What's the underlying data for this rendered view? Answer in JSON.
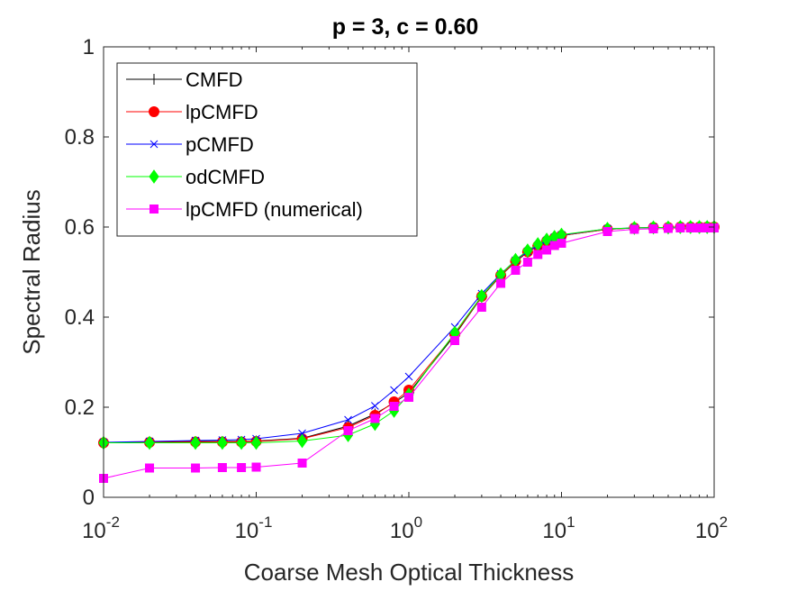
{
  "chart_data": {
    "type": "line",
    "title": "p = 3, c = 0.60",
    "xlabel": "Coarse Mesh Optical Thickness",
    "ylabel": "Spectral Radius",
    "xscale": "log",
    "xlim": [
      0.01,
      100
    ],
    "ylim": [
      0,
      1
    ],
    "x_ticks": [
      {
        "base": "10",
        "exp": "-2"
      },
      {
        "base": "10",
        "exp": "-1"
      },
      {
        "base": "10",
        "exp": "0"
      },
      {
        "base": "10",
        "exp": "1"
      },
      {
        "base": "10",
        "exp": "2"
      }
    ],
    "y_ticks": [
      "0",
      "0.2",
      "0.4",
      "0.6",
      "0.8",
      "1"
    ],
    "legend_position": "top-left",
    "x": [
      0.01,
      0.02,
      0.04,
      0.06,
      0.08,
      0.1,
      0.2,
      0.4,
      0.6,
      0.8,
      1,
      2,
      3,
      4,
      5,
      6,
      7,
      8,
      9,
      10,
      20,
      30,
      40,
      50,
      60,
      70,
      80,
      90,
      100
    ],
    "series": [
      {
        "name": "CMFD",
        "color": "#000000",
        "marker": "plus",
        "values": [
          0.121,
          0.123,
          0.124,
          0.124,
          0.124,
          0.125,
          0.131,
          0.158,
          0.185,
          0.21,
          0.232,
          0.36,
          0.445,
          0.492,
          0.523,
          0.544,
          0.558,
          0.569,
          0.576,
          0.581,
          0.595,
          0.598,
          0.599,
          0.599,
          0.6,
          0.6,
          0.6,
          0.6,
          0.6
        ]
      },
      {
        "name": "lpCMFD",
        "color": "#ff0000",
        "marker": "circle",
        "values": [
          0.121,
          0.122,
          0.123,
          0.123,
          0.123,
          0.124,
          0.13,
          0.155,
          0.182,
          0.212,
          0.238,
          0.362,
          0.446,
          0.493,
          0.524,
          0.545,
          0.558,
          0.569,
          0.576,
          0.581,
          0.595,
          0.598,
          0.599,
          0.599,
          0.6,
          0.6,
          0.6,
          0.6,
          0.6
        ]
      },
      {
        "name": "pCMFD",
        "color": "#0000ff",
        "marker": "x",
        "values": [
          0.122,
          0.124,
          0.126,
          0.127,
          0.128,
          0.13,
          0.142,
          0.172,
          0.203,
          0.238,
          0.268,
          0.378,
          0.452,
          0.496,
          0.526,
          0.546,
          0.559,
          0.57,
          0.577,
          0.582,
          0.596,
          0.598,
          0.599,
          0.599,
          0.6,
          0.6,
          0.6,
          0.6,
          0.6
        ]
      },
      {
        "name": "odCMFD",
        "color": "#00ff00",
        "marker": "diamond",
        "values": [
          0.121,
          0.121,
          0.121,
          0.121,
          0.121,
          0.121,
          0.125,
          0.138,
          0.163,
          0.192,
          0.228,
          0.365,
          0.447,
          0.495,
          0.527,
          0.548,
          0.562,
          0.572,
          0.578,
          0.583,
          0.596,
          0.598,
          0.599,
          0.599,
          0.6,
          0.6,
          0.6,
          0.6,
          0.6
        ]
      },
      {
        "name": "lpCMFD (numerical)",
        "color": "#ff00ff",
        "marker": "square",
        "values": [
          0.042,
          0.065,
          0.065,
          0.066,
          0.066,
          0.067,
          0.076,
          0.148,
          0.175,
          0.202,
          0.222,
          0.348,
          0.422,
          0.475,
          0.504,
          0.522,
          0.539,
          0.549,
          0.559,
          0.564,
          0.59,
          0.595,
          0.596,
          0.597,
          0.598,
          0.598,
          0.598,
          0.598,
          0.598
        ]
      }
    ]
  }
}
